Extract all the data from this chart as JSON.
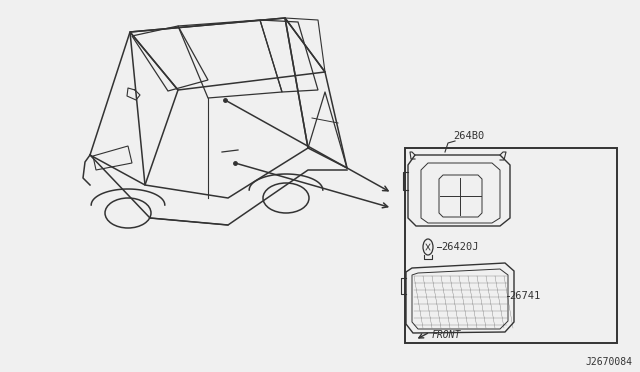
{
  "background_color": "#f0f0f0",
  "line_color": "#333333",
  "text_color": "#333333",
  "part_number_264B0": "264B0",
  "part_number_26420J": "26420J",
  "part_number_26741": "26741",
  "ref_number": "J2670084",
  "front_label": "FRONT"
}
